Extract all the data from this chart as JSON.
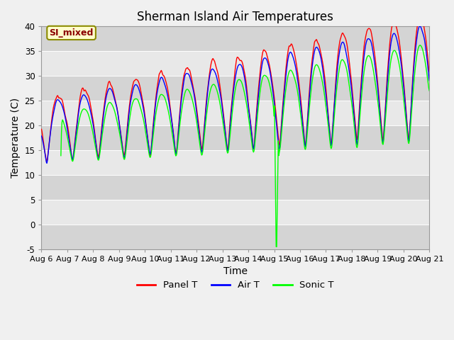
{
  "title": "Sherman Island Air Temperatures",
  "xlabel": "Time",
  "ylabel": "Temperature (C)",
  "xlim": [
    0,
    15
  ],
  "ylim": [
    -5,
    40
  ],
  "yticks": [
    -5,
    0,
    5,
    10,
    15,
    20,
    25,
    30,
    35,
    40
  ],
  "xtick_labels": [
    "Aug 6",
    "Aug 7",
    "Aug 8",
    "Aug 9",
    "Aug 10",
    "Aug 11",
    "Aug 12",
    "Aug 13",
    "Aug 14",
    "Aug 15",
    "Aug 16",
    "Aug 17",
    "Aug 18",
    "Aug 19",
    "Aug 20",
    "Aug 21"
  ],
  "annotation_text": "SI_mixed",
  "legend_entries": [
    "Panel T",
    "Air T",
    "Sonic T"
  ],
  "line_colors": [
    "red",
    "blue",
    "#00ff00"
  ],
  "bg_light": "#e8e8e8",
  "bg_dark": "#d4d4d4",
  "title_fontsize": 12,
  "axis_label_fontsize": 10,
  "tick_fontsize": 8.5
}
